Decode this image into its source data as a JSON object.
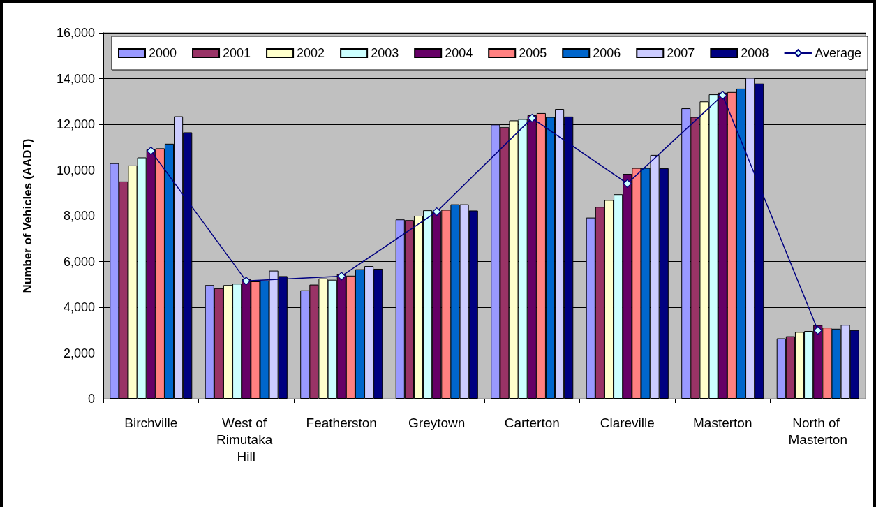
{
  "chart_data": {
    "type": "bar",
    "ylabel": "Number of Vehicles (AADT)",
    "categories": [
      "Birchville",
      "West of Rimutaka Hill",
      "Featherston",
      "Greytown",
      "Carterton",
      "Clareville",
      "Masterton",
      "North of Masterton"
    ],
    "series": [
      {
        "name": "2000",
        "color": "#9999ff",
        "values": [
          10300,
          4970,
          4740,
          7840,
          11990,
          7920,
          12700,
          2640
        ]
      },
      {
        "name": "2001",
        "color": "#993366",
        "values": [
          9500,
          4830,
          4990,
          7810,
          11870,
          8390,
          12320,
          2730
        ]
      },
      {
        "name": "2002",
        "color": "#ffffcc",
        "values": [
          10200,
          4970,
          5260,
          8000,
          12170,
          8690,
          13000,
          2920
        ]
      },
      {
        "name": "2003",
        "color": "#ccffff",
        "values": [
          10550,
          5030,
          5200,
          8240,
          12230,
          8940,
          13310,
          2960
        ]
      },
      {
        "name": "2004",
        "color": "#660066",
        "values": [
          10900,
          5230,
          5450,
          8200,
          12400,
          9830,
          13380,
          3220
        ]
      },
      {
        "name": "2005",
        "color": "#ff8080",
        "values": [
          10950,
          5130,
          5380,
          8260,
          12490,
          10090,
          13410,
          3110
        ]
      },
      {
        "name": "2006",
        "color": "#0066cc",
        "values": [
          11150,
          5170,
          5660,
          8500,
          12320,
          10090,
          13560,
          3060
        ]
      },
      {
        "name": "2007",
        "color": "#ccccff",
        "values": [
          12350,
          5600,
          5800,
          8500,
          12670,
          10660,
          14030,
          3230
        ]
      },
      {
        "name": "2008",
        "color": "#000080",
        "values": [
          11650,
          5360,
          5680,
          8230,
          12340,
          10080,
          13780,
          3000
        ]
      },
      {
        "name": "Average",
        "type": "line",
        "color": "#000080",
        "values": [
          10840,
          5150,
          5360,
          8180,
          12270,
          9410,
          13270,
          2990
        ]
      }
    ],
    "ylim": [
      0,
      16000
    ],
    "yticks": [
      0,
      {
        "value": 2000,
        "label": "2,000"
      },
      {
        "value": 4000,
        "label": "4,000"
      },
      {
        "value": 6000,
        "label": "6,000"
      },
      {
        "value": 8000,
        "label": "8,000"
      },
      {
        "value": 10000,
        "label": "10,000"
      },
      {
        "value": 12000,
        "label": "12,000"
      },
      {
        "value": 14000,
        "label": "14,000"
      },
      {
        "value": 16000,
        "label": "16,000"
      }
    ],
    "grid": "y",
    "legend": "top",
    "marker": "diamond",
    "line_style": "solid"
  }
}
